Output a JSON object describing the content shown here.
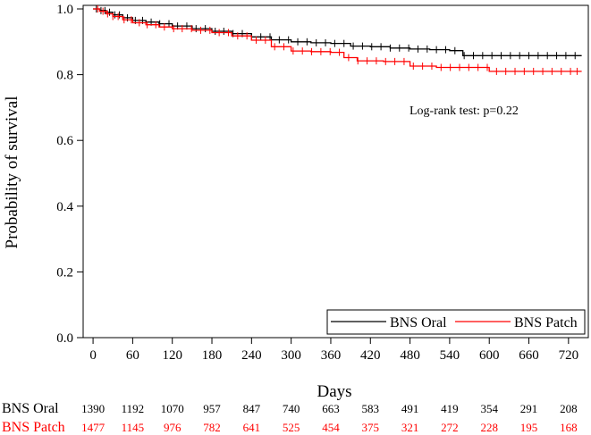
{
  "chart_data": {
    "type": "line",
    "subtype": "kaplan-meier",
    "xlabel": "Days",
    "ylabel": "Probability of survival",
    "xlim": [
      -15,
      750
    ],
    "ylim": [
      0,
      1.0
    ],
    "x_ticks": [
      0,
      60,
      120,
      180,
      240,
      300,
      360,
      420,
      480,
      540,
      600,
      660,
      720
    ],
    "y_ticks": [
      0.0,
      0.2,
      0.4,
      0.6,
      0.8,
      1.0
    ],
    "y_tick_labels": [
      "0.0",
      "0.2",
      "0.4",
      "0.6",
      "0.8",
      "1.0"
    ],
    "annotation": "Log-rank test: p=0.22",
    "legend_position": "bottom-right",
    "series": [
      {
        "name": "BNS Oral",
        "color": "#000000",
        "x": [
          0,
          10,
          20,
          30,
          45,
          60,
          80,
          100,
          120,
          150,
          180,
          210,
          240,
          270,
          300,
          330,
          360,
          390,
          420,
          450,
          480,
          510,
          540,
          560,
          600,
          640,
          680,
          720,
          740
        ],
        "y": [
          1.0,
          0.995,
          0.99,
          0.982,
          0.973,
          0.965,
          0.96,
          0.955,
          0.948,
          0.94,
          0.932,
          0.925,
          0.915,
          0.906,
          0.9,
          0.897,
          0.895,
          0.887,
          0.885,
          0.881,
          0.878,
          0.876,
          0.873,
          0.858,
          0.858,
          0.858,
          0.858,
          0.858,
          0.858
        ],
        "censor_x": [
          5,
          12,
          18,
          25,
          33,
          40,
          52,
          64,
          75,
          88,
          101,
          115,
          128,
          142,
          156,
          170,
          185,
          198,
          212,
          226,
          240,
          254,
          268,
          282,
          296,
          310,
          324,
          338,
          352,
          366,
          380,
          394,
          408,
          422,
          436,
          450,
          464,
          478,
          492,
          506,
          520,
          534,
          548,
          562,
          576,
          590,
          604,
          618,
          632,
          646,
          660,
          674,
          688,
          702,
          716,
          730
        ]
      },
      {
        "name": "BNS Patch",
        "color": "#ff0000",
        "x": [
          0,
          10,
          20,
          30,
          45,
          60,
          80,
          100,
          120,
          150,
          180,
          210,
          240,
          270,
          300,
          330,
          360,
          380,
          400,
          440,
          480,
          520,
          560,
          590,
          600,
          640,
          680,
          720,
          740
        ],
        "y": [
          1.0,
          0.993,
          0.985,
          0.977,
          0.967,
          0.958,
          0.952,
          0.945,
          0.94,
          0.935,
          0.928,
          0.918,
          0.905,
          0.885,
          0.872,
          0.87,
          0.868,
          0.852,
          0.842,
          0.84,
          0.826,
          0.822,
          0.822,
          0.822,
          0.81,
          0.81,
          0.81,
          0.81,
          0.81
        ],
        "censor_x": [
          7,
          15,
          22,
          30,
          38,
          47,
          58,
          70,
          82,
          95,
          108,
          122,
          135,
          149,
          163,
          177,
          191,
          205,
          219,
          233,
          247,
          261,
          275,
          289,
          303,
          317,
          331,
          345,
          359,
          373,
          387,
          401,
          415,
          429,
          443,
          457,
          471,
          485,
          499,
          513,
          527,
          541,
          555,
          569,
          583,
          597,
          611,
          625,
          639,
          653,
          667,
          681,
          695,
          709,
          723,
          733
        ]
      }
    ],
    "risk_table": [
      {
        "label": "BNS Oral",
        "color": "#000000",
        "values": [
          "1390",
          "1192",
          "1070",
          "957",
          "847",
          "740",
          "663",
          "583",
          "491",
          "419",
          "354",
          "291",
          "208"
        ]
      },
      {
        "label": "BNS Patch",
        "color": "#ff0000",
        "values": [
          "1477",
          "1145",
          "976",
          "782",
          "641",
          "525",
          "454",
          "375",
          "321",
          "272",
          "228",
          "195",
          "168"
        ]
      }
    ]
  }
}
